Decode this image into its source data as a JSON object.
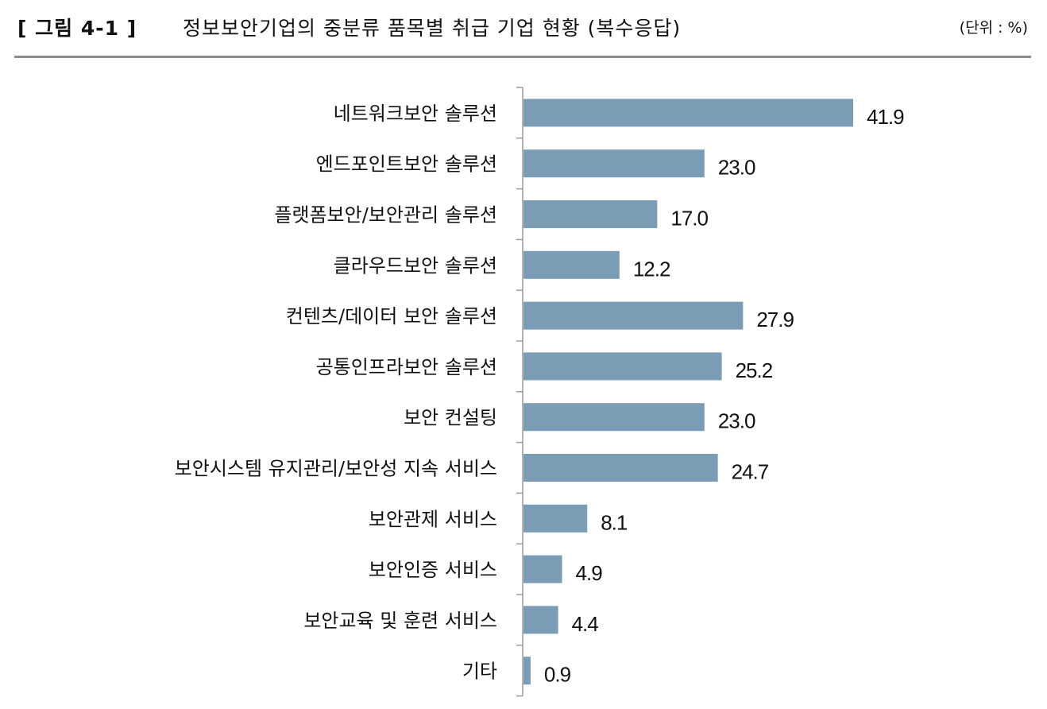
{
  "figure": {
    "label": "[ 그림 4-1 ]",
    "title": "정보보안기업의 중분류 품목별 취급 기업 현황 (복수응답)",
    "unit": "(단위 : %)"
  },
  "chart_data": {
    "type": "bar",
    "orientation": "horizontal",
    "title": "정보보안기업의 중분류 품목별 취급 기업 현황 (복수응답)",
    "xlabel": "",
    "ylabel": "",
    "unit": "%",
    "categories": [
      "네트워크보안 솔루션",
      "엔드포인트보안 솔루션",
      "플랫폼보안/보안관리 솔루션",
      "클라우드보안 솔루션",
      "컨텐츠/데이터 보안 솔루션",
      "공통인프라보안 솔루션",
      "보안 컨설팅",
      "보안시스템 유지관리/보안성 지속 서비스",
      "보안관제 서비스",
      "보안인증 서비스",
      "보안교육 및 훈련 서비스",
      "기타"
    ],
    "values": [
      41.9,
      23.0,
      17.0,
      12.2,
      27.9,
      25.2,
      23.0,
      24.7,
      8.1,
      4.9,
      4.4,
      0.9
    ],
    "value_labels": [
      "41.9",
      "23.0",
      "17.0",
      "12.2",
      "27.9",
      "25.2",
      "23.0",
      "24.7",
      "8.1",
      "4.9",
      "4.4",
      "0.9"
    ],
    "bar_color": "#7a9db5",
    "xlim": [
      0,
      50
    ],
    "grid": false,
    "legend": "none"
  }
}
